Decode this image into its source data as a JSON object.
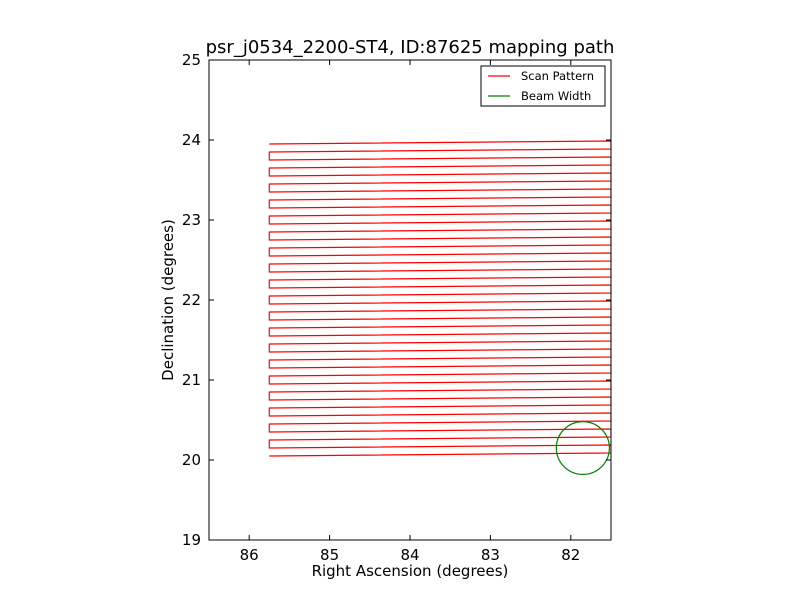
{
  "chart_data": {
    "type": "line",
    "title": "psr_j0534_2200-ST4, ID:87625 mapping path",
    "xlabel": "Right Ascension (degrees)",
    "ylabel": "Declination (degrees)",
    "xlim": [
      86.5,
      81.5
    ],
    "ylim": [
      19,
      25
    ],
    "x_inverted": true,
    "xticks": [
      86,
      85,
      84,
      83,
      82
    ],
    "yticks": [
      19,
      20,
      21,
      22,
      23,
      24,
      25
    ],
    "grid": false,
    "legend_position": "top-right",
    "series": [
      {
        "name": "Scan Pattern",
        "color": "#ff0000",
        "scan_ra_start": 85.75,
        "scan_ra_end": 81.5,
        "dec_start": 20.05,
        "dec_end": 24.0,
        "dec_step": 0.1,
        "row_tilt_deg": 0.5
      },
      {
        "name": "Beam Width",
        "color": "#008000",
        "center_ra": 81.85,
        "center_dec": 20.15,
        "radius_deg": 0.33
      }
    ]
  }
}
